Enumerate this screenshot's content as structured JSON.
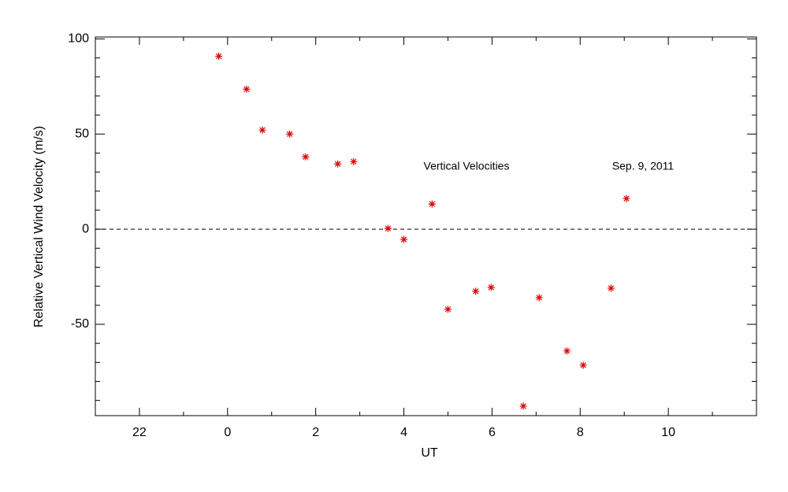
{
  "chart_data": {
    "type": "scatter",
    "x_label": "UT",
    "y_label": "Relative Vertical Wind Velocity (m/s)",
    "annotations": [
      "Vertical Velocities",
      "Sep. 9, 2011"
    ],
    "series": [
      {
        "color": "#e00000",
        "x": [
          -0.2,
          0.43,
          0.79,
          1.41,
          1.77,
          2.5,
          2.86,
          3.64,
          4.0,
          4.64,
          5.0,
          5.63,
          5.98,
          6.71,
          7.07,
          7.7,
          8.07,
          8.7,
          9.05
        ],
        "values": [
          90.9,
          73.6,
          52.1,
          50.0,
          38.0,
          34.3,
          35.5,
          0.4,
          -5.4,
          13.2,
          -42.1,
          -32.6,
          -30.6,
          -93.0,
          -36.0,
          -64.0,
          -71.5,
          -31.0,
          16.1
        ]
      }
    ],
    "xlim": [
      -3,
      12
    ],
    "xticks": [
      {
        "value": -2,
        "label": "22"
      },
      0,
      2,
      4,
      6,
      8,
      10
    ],
    "xminorticks": [
      -3,
      -1,
      1,
      3,
      5,
      7,
      9,
      11,
      12
    ],
    "ylim": [
      -98,
      101
    ],
    "yticks": [
      -50,
      0,
      50,
      100
    ],
    "yminorticks": [
      -90,
      -80,
      -70,
      -60,
      -40,
      -30,
      -20,
      -10,
      10,
      20,
      30,
      40,
      60,
      70,
      80,
      90
    ],
    "reference_line": 0
  }
}
